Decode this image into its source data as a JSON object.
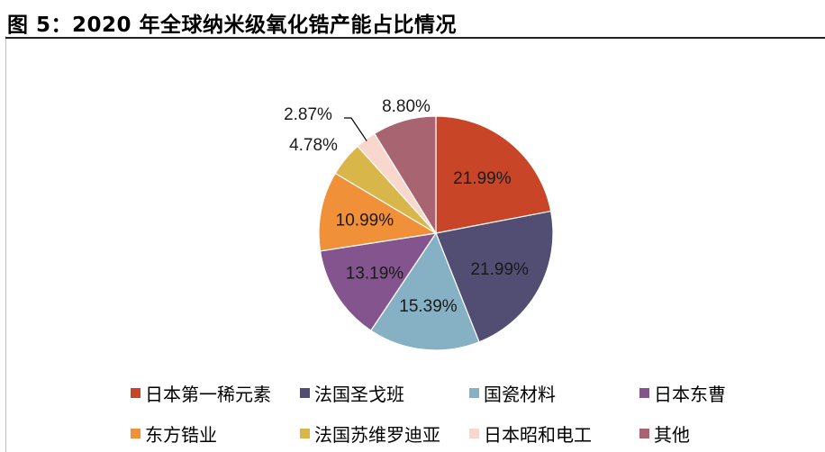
{
  "figure": {
    "title": "图 5：2020 年全球纳米级氧化锆产能占比情况"
  },
  "chart_data": {
    "type": "pie",
    "title": "",
    "unit": "%",
    "categories": [
      "日本第一稀元素",
      "法国圣戈班",
      "国瓷材料",
      "日本东曹",
      "东方锆业",
      "法国苏维罗迪亚",
      "日本昭和电工",
      "其他"
    ],
    "values": [
      21.99,
      21.99,
      15.39,
      13.19,
      10.99,
      4.78,
      2.87,
      8.8
    ],
    "labels": [
      "21.99%",
      "21.99%",
      "15.39%",
      "13.19%",
      "10.99%",
      "4.78%",
      "2.87%",
      "8.80%"
    ],
    "colors": [
      "#c84527",
      "#514d73",
      "#86b0c4",
      "#83548e",
      "#f09038",
      "#d9b64a",
      "#f9d7cc",
      "#a86470"
    ],
    "start_angle": "12 o'clock",
    "direction": "clockwise",
    "legend": {
      "placement": "bottom",
      "columns": 4
    }
  }
}
